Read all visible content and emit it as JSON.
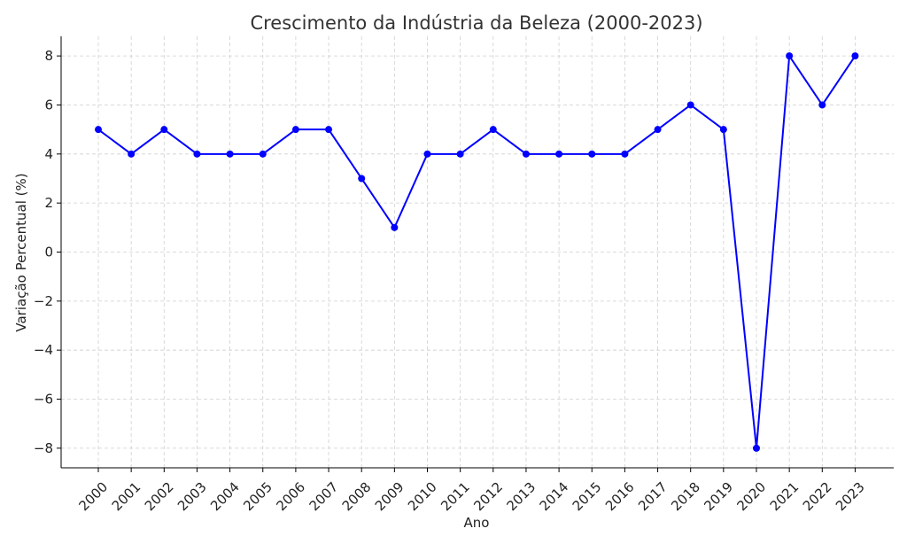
{
  "chart_data": {
    "type": "line",
    "title": "Crescimento da Indústria da Beleza (2000-2023)",
    "xlabel": "Ano",
    "ylabel": "Variação Percentual (%)",
    "x": [
      "2000",
      "2001",
      "2002",
      "2003",
      "2004",
      "2005",
      "2006",
      "2007",
      "2008",
      "2009",
      "2010",
      "2011",
      "2012",
      "2013",
      "2014",
      "2015",
      "2016",
      "2017",
      "2018",
      "2019",
      "2020",
      "2021",
      "2022",
      "2023"
    ],
    "series": [
      {
        "values": [
          5,
          4,
          5,
          4,
          4,
          4,
          5,
          5,
          3,
          1,
          4,
          4,
          5,
          4,
          4,
          4,
          4,
          5,
          6,
          5,
          -8,
          8,
          6,
          8
        ],
        "color": "#0000ff",
        "marker": "circle"
      }
    ],
    "ylim": [
      -8.8,
      8.8
    ],
    "yticks": [
      -8,
      -6,
      -4,
      -2,
      0,
      2,
      4,
      6,
      8
    ],
    "ytick_labels": [
      "−8",
      "−6",
      "−4",
      "−2",
      "0",
      "2",
      "4",
      "6",
      "8"
    ],
    "grid": true,
    "legend": "none"
  }
}
